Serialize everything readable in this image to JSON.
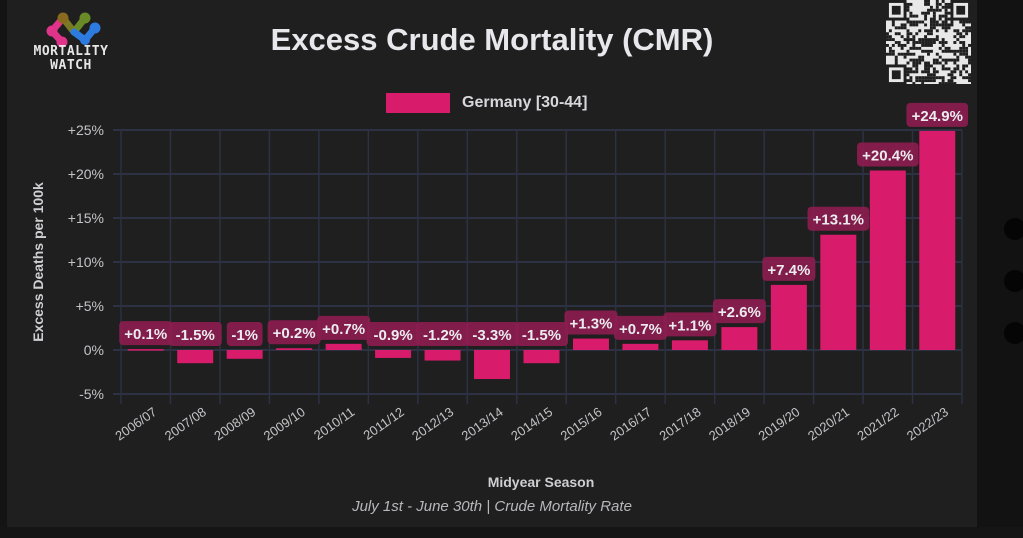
{
  "brand": {
    "name_line1": "MORTALITY",
    "name_line2": "WATCH",
    "logo_colors": [
      "#e0338a",
      "#8a6a1e",
      "#6a8a28",
      "#2e7be0"
    ]
  },
  "qr_code": "qr-code",
  "footer": "July 1st - June 30th | Crude Mortality Rate",
  "chart_data": {
    "type": "bar",
    "title": "Excess Crude Mortality (CMR)",
    "xlabel": "Midyear Season",
    "ylabel": "Excess Deaths per 100k",
    "ylim": [
      -5,
      25
    ],
    "yticks": [
      -5,
      0,
      5,
      10,
      15,
      20,
      25
    ],
    "ytick_labels": [
      "-5%",
      "0%",
      "+5%",
      "+10%",
      "+15%",
      "+20%",
      "+25%"
    ],
    "grid": true,
    "legend": "top-center",
    "colors": {
      "bar": "#d81b6a",
      "label_box": "#8b1d4f",
      "grid": "#2c3144"
    },
    "categories": [
      "2006/07",
      "2007/08",
      "2008/09",
      "2009/10",
      "2010/11",
      "2011/12",
      "2012/13",
      "2013/14",
      "2014/15",
      "2015/16",
      "2016/17",
      "2017/18",
      "2018/19",
      "2019/20",
      "2020/21",
      "2021/22",
      "2022/23"
    ],
    "series": [
      {
        "name": "Germany [30-44]",
        "values": [
          0.1,
          -1.5,
          -1.0,
          0.2,
          0.7,
          -0.9,
          -1.2,
          -3.3,
          -1.5,
          1.3,
          0.7,
          1.1,
          2.6,
          7.4,
          13.1,
          20.4,
          24.9
        ],
        "labels": [
          "+0.1%",
          "-1.5%",
          "-1%",
          "+0.2%",
          "+0.7%",
          "-0.9%",
          "-1.2%",
          "-3.3%",
          "-1.5%",
          "+1.3%",
          "+0.7%",
          "+1.1%",
          "+2.6%",
          "+7.4%",
          "+13.1%",
          "+20.4%",
          "+24.9%"
        ]
      }
    ]
  }
}
